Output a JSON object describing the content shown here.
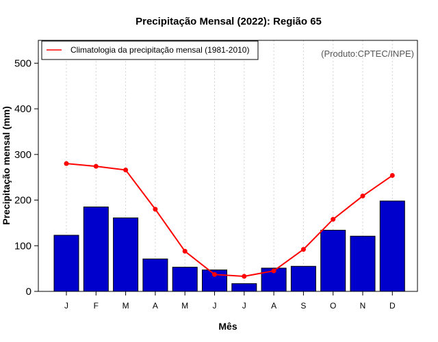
{
  "chart_data": {
    "type": "bar",
    "title": "Precipitação Mensal (2022): Região 65",
    "xlabel": "Mês",
    "ylabel": "Precipitação mensal (mm)",
    "credit": "(Produto:CPTEC/INPE)",
    "categories": [
      "J",
      "F",
      "M",
      "A",
      "M",
      "J",
      "J",
      "A",
      "S",
      "O",
      "N",
      "D"
    ],
    "ylim": [
      0,
      550
    ],
    "yticks": [
      0,
      100,
      200,
      300,
      400,
      500
    ],
    "series": [
      {
        "name": "Precipitação mensal 2022",
        "type": "bar",
        "color": "#0000CD",
        "values": [
          123,
          185,
          161,
          71,
          53,
          47,
          17,
          51,
          55,
          134,
          121,
          198
        ]
      },
      {
        "name": "Climatologia da precipitação mensal (1981-2010)",
        "type": "line",
        "color": "#FF0000",
        "values": [
          280,
          274,
          266,
          180,
          88,
          37,
          33,
          45,
          92,
          158,
          209,
          254
        ]
      }
    ],
    "legend": {
      "position": "top-left",
      "entries": [
        "Climatologia da precipitação mensal (1981-2010)"
      ]
    },
    "grid": "vertical-dotted"
  }
}
